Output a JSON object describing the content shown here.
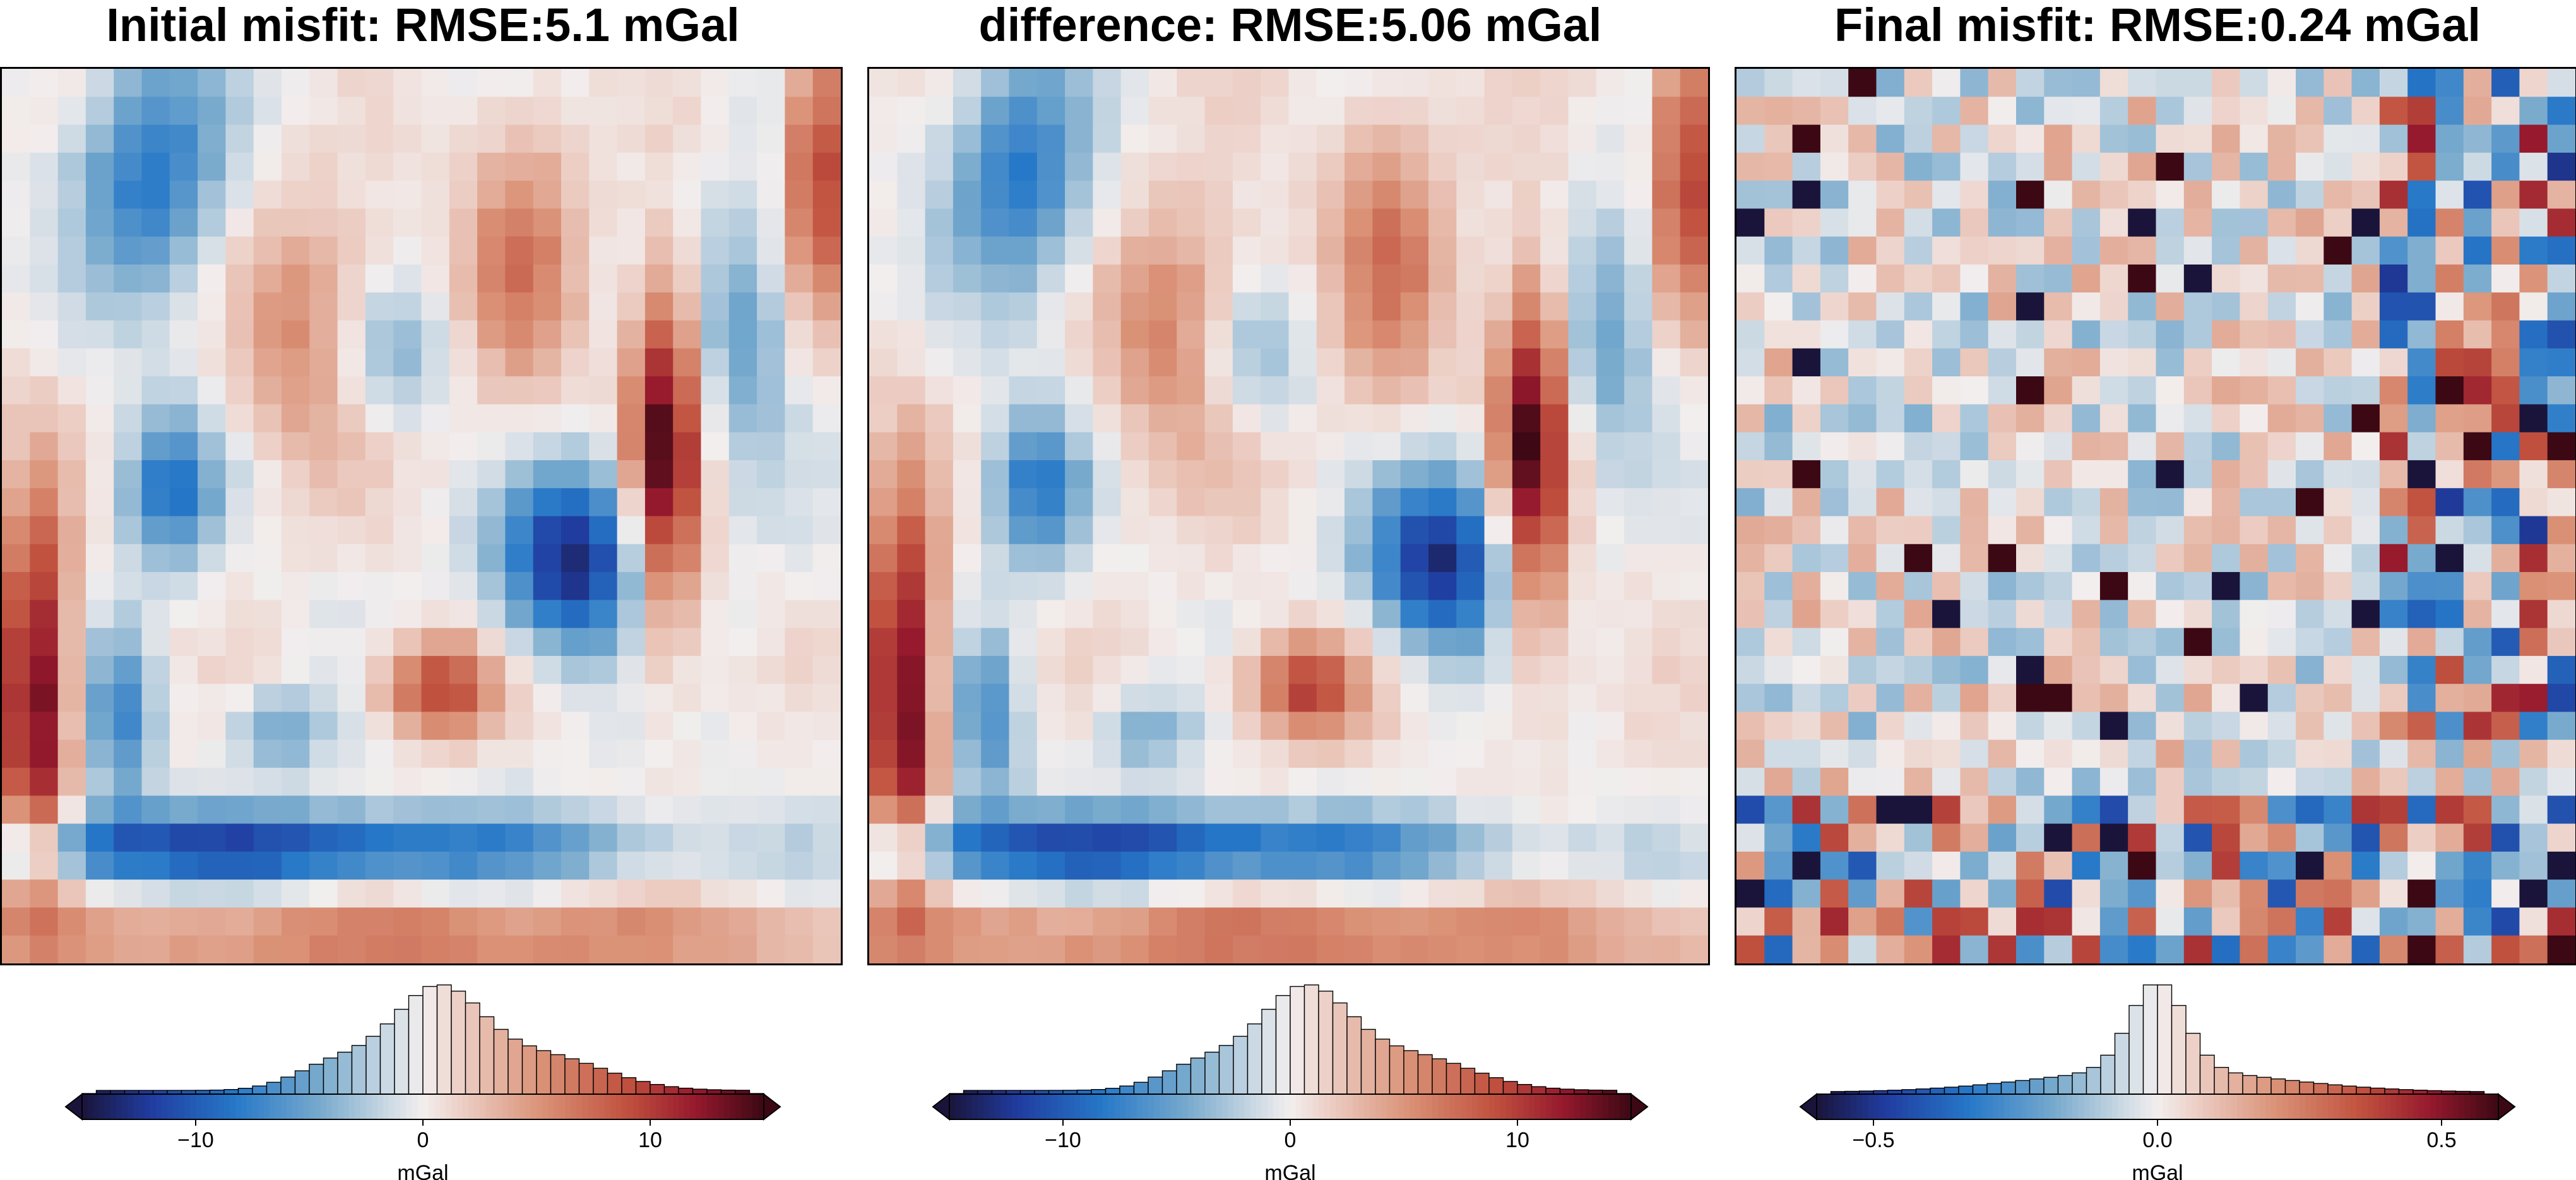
{
  "chart_data": [
    {
      "type": "heatmap",
      "title": "Initial misfit: RMSE:5.1 mGal",
      "rmse": 5.1,
      "units": "mGal",
      "colormap": "diverging blue-white-red (balance)",
      "grid_cells": [
        30,
        32
      ],
      "colorbar": {
        "label": "mGal",
        "range": [
          -15,
          15
        ],
        "ticks": [
          -10,
          0,
          10
        ],
        "tick_labels": [
          "−10",
          "0",
          "10"
        ],
        "extend": "both",
        "histogram_bins": 48
      }
    },
    {
      "type": "heatmap",
      "title": "difference: RMSE:5.06 mGal",
      "rmse": 5.06,
      "units": "mGal",
      "colormap": "diverging blue-white-red (balance)",
      "grid_cells": [
        30,
        32
      ],
      "colorbar": {
        "label": "mGal",
        "range": [
          -15,
          15
        ],
        "ticks": [
          -10,
          0,
          10
        ],
        "tick_labels": [
          "−10",
          "0",
          "10"
        ],
        "extend": "both",
        "histogram_bins": 48
      }
    },
    {
      "type": "heatmap",
      "title": "Final misfit: RMSE:0.24 mGal",
      "rmse": 0.24,
      "units": "mGal",
      "colormap": "diverging blue-white-red (balance)",
      "grid_cells": [
        30,
        32
      ],
      "colorbar": {
        "label": "mGal",
        "range": [
          -0.6,
          0.6
        ],
        "ticks": [
          -0.5,
          0.0,
          0.5
        ],
        "tick_labels": [
          "−0.5",
          "0.0",
          "0.5"
        ],
        "extend": "both",
        "histogram_bins": 48
      }
    }
  ],
  "colors": {
    "low": "#1a2a6b",
    "mid_low": "#2f7fc1",
    "neutral": "#f2eeee",
    "mid_high": "#c8603e",
    "high": "#4a0d18",
    "frame": "#000000"
  }
}
